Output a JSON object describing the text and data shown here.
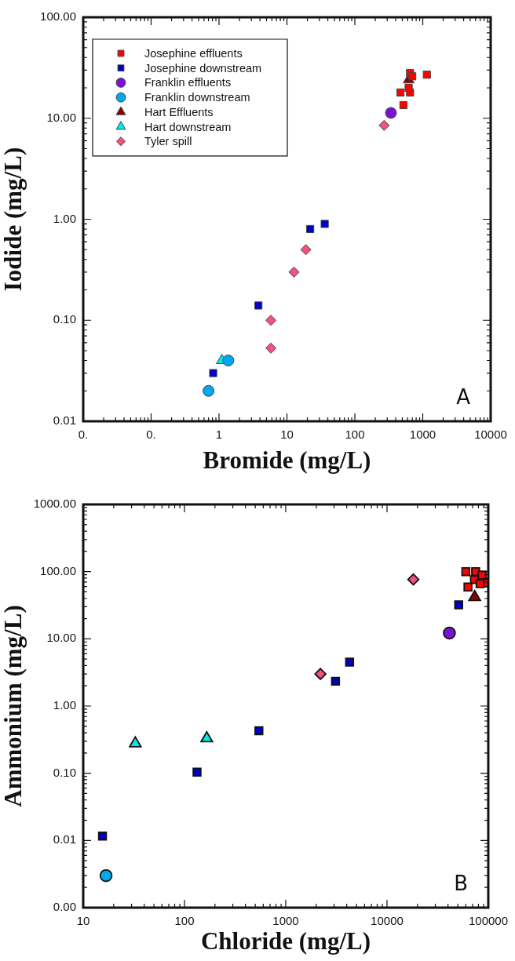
{
  "chart_data": [
    {
      "type": "scatter",
      "xlabel": "Bromide (mg/L)",
      "ylabel": "Iodide (mg/L)",
      "log": "xy",
      "legend": "top left",
      "annotations": [
        "A"
      ],
      "xlim": [
        0.01,
        10000
      ],
      "ylim": [
        0.01,
        100
      ],
      "xticks": [
        {
          "value": 0.01,
          "label": "0."
        },
        {
          "value": 0.1,
          "label": "0."
        },
        1,
        10,
        100,
        1000,
        10000
      ],
      "yticks": [
        {
          "value": 0.01,
          "label": "0.01"
        },
        {
          "value": 0.1,
          "label": "0.10"
        },
        {
          "value": 1,
          "label": "1.00"
        },
        {
          "value": 10,
          "label": "10.00"
        },
        {
          "value": 100,
          "label": "100.00"
        }
      ],
      "series": [
        {
          "name": "Josephine effluents",
          "color": "#ff0000",
          "marker": "square",
          "x": [
            650,
            700,
            1150,
            470,
            650,
            520,
            620
          ],
          "values": [
            28,
            26,
            27,
            18,
            18,
            13.5,
            20
          ]
        },
        {
          "name": "Josephine downstream",
          "color": "#0000cc",
          "marker": "square",
          "x": [
            22,
            36,
            3.8,
            0.82
          ],
          "values": [
            0.8,
            0.9,
            0.14,
            0.03
          ]
        },
        {
          "name": "Franklin effluents",
          "color": "#7a12d4",
          "marker": "circle",
          "x": [
            340
          ],
          "values": [
            11.3
          ]
        },
        {
          "name": "Franklin downstream",
          "color": "#00a8f0",
          "marker": "circle",
          "x": [
            1.37,
            0.7
          ],
          "values": [
            0.04,
            0.02
          ]
        },
        {
          "name": "Hart Effluents",
          "color": "#8b0000",
          "marker": "triangle",
          "x": [
            620
          ],
          "values": [
            24
          ]
        },
        {
          "name": "Hart downstream",
          "color": "#00e8f0",
          "marker": "triangle",
          "x": [
            1.1
          ],
          "values": [
            0.04
          ]
        },
        {
          "name": "Tyler spill",
          "color": "#f2527c",
          "marker": "diamond",
          "x": [
            270,
            19,
            12.7,
            5.8,
            5.8
          ],
          "values": [
            8.5,
            0.5,
            0.3,
            0.1,
            0.053
          ]
        }
      ]
    },
    {
      "type": "scatter",
      "xlabel": "Chloride (mg/L)",
      "ylabel": "Ammonium (mg/L)",
      "log": "xy",
      "annotations": [
        "B"
      ],
      "xlim": [
        10,
        100000
      ],
      "ylim": [
        0.001,
        1000
      ],
      "xticks": [
        10,
        100,
        1000,
        10000,
        100000
      ],
      "yticks": [
        {
          "value": 0.001,
          "label": "0.00"
        },
        {
          "value": 0.01,
          "label": "0.01"
        },
        {
          "value": 0.1,
          "label": "0.10"
        },
        {
          "value": 1,
          "label": "1.00"
        },
        {
          "value": 10,
          "label": "10.00"
        },
        {
          "value": 100,
          "label": "100.00"
        },
        {
          "value": 1000,
          "label": "1000.00"
        }
      ],
      "series": [
        {
          "color": "#ff0000",
          "marker": "square",
          "x": [
            60000,
            75000,
            73000,
            63000,
            83000,
            98000,
            87000
          ],
          "values": [
            100,
            100,
            76,
            59,
            66,
            68,
            89
          ]
        },
        {
          "color": "#0000cc",
          "marker": "square",
          "x": [
            4270,
            3100,
            51000,
            543,
            133,
            15.5
          ],
          "values": [
            4.5,
            2.34,
            32,
            0.43,
            0.104,
            0.0116
          ]
        },
        {
          "color": "#7a12d4",
          "marker": "circle",
          "x": [
            41300
          ],
          "values": [
            12.2
          ]
        },
        {
          "color": "#00a8f0",
          "marker": "circle",
          "x": [
            16.8
          ],
          "values": [
            0.003
          ]
        },
        {
          "color": "#8b0000",
          "marker": "triangle",
          "x": [
            73400
          ],
          "values": [
            41.7
          ]
        },
        {
          "color": "#00e8f0",
          "marker": "triangle",
          "x": [
            32.7,
            166
          ],
          "values": [
            0.277,
            0.33
          ]
        },
        {
          "color": "#f2527c",
          "marker": "diamond",
          "x": [
            18200,
            2200
          ],
          "values": [
            76.5,
            3.0
          ]
        }
      ]
    }
  ]
}
